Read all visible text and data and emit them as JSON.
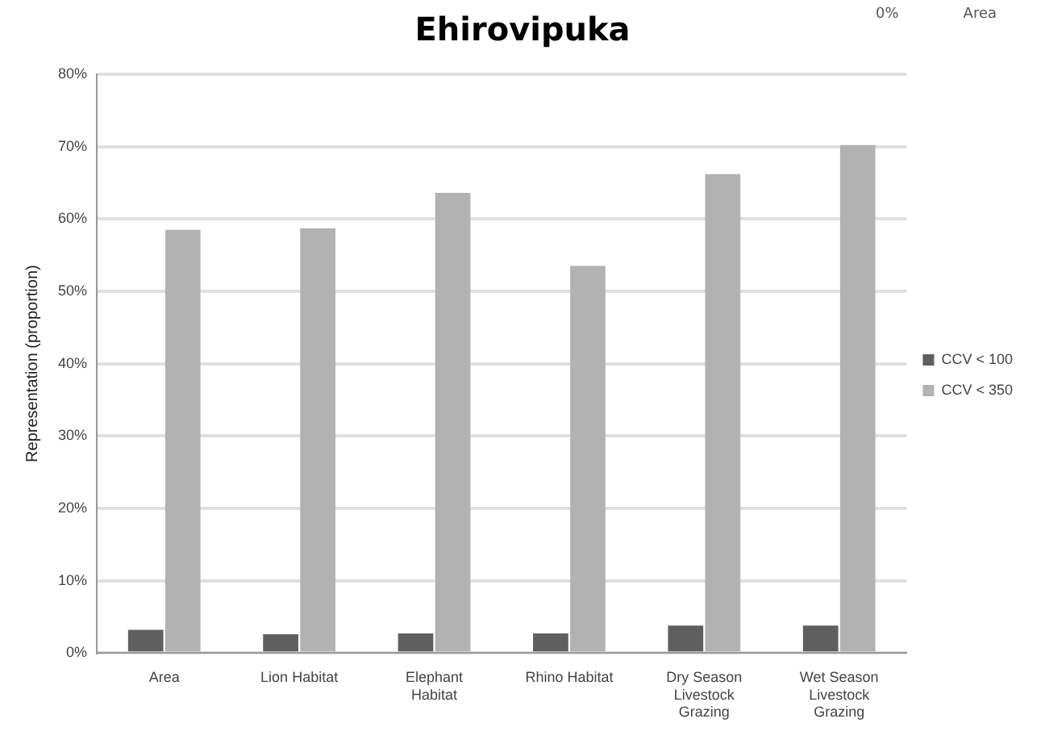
{
  "chart_data": {
    "type": "bar",
    "title": "Ehirovipuka",
    "ylabel": "Representation (proportion)",
    "categories": [
      "Area",
      "Lion Habitat",
      "Elephant Habitat",
      "Rhino Habitat",
      "Dry Season Livestock Grazing",
      "Wet Season Livestock Grazing"
    ],
    "series": [
      {
        "name": "CCV < 100",
        "color": "#5f5f5f",
        "values": [
          3.2,
          2.6,
          2.7,
          2.7,
          3.8,
          3.8
        ]
      },
      {
        "name": "CCV < 350",
        "color": "#b2b2b2",
        "values": [
          58.5,
          58.7,
          63.6,
          53.5,
          66.2,
          70.2
        ]
      }
    ],
    "ylim": [
      0,
      80
    ],
    "yticks": [
      {
        "value": 0,
        "label": "0%"
      },
      {
        "value": 10,
        "label": "10%"
      },
      {
        "value": 20,
        "label": "20%"
      },
      {
        "value": 30,
        "label": "30%"
      },
      {
        "value": 40,
        "label": "40%"
      },
      {
        "value": 50,
        "label": "50%"
      },
      {
        "value": 60,
        "label": "60%"
      },
      {
        "value": 70,
        "label": "70%"
      },
      {
        "value": 80,
        "label": "80%"
      }
    ],
    "grid": "y",
    "legend": "right",
    "annotations": [
      "0%",
      "Area"
    ]
  }
}
